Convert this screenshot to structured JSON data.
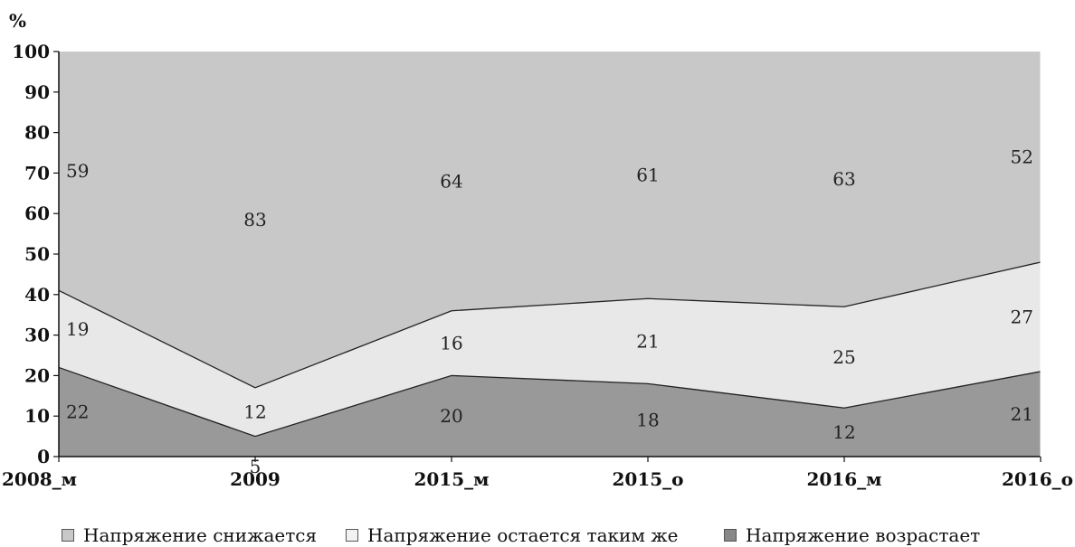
{
  "chart_data": {
    "type": "area",
    "stacked": true,
    "ylabel": "%",
    "ylim": [
      0,
      100
    ],
    "yticks": [
      0,
      10,
      20,
      30,
      40,
      50,
      60,
      70,
      80,
      90,
      100
    ],
    "categories": [
      "2008_м",
      "2009",
      "2015_м",
      "2015_о",
      "2016_м",
      "2016_о"
    ],
    "series": [
      {
        "name": "Напряжение возрастает",
        "values": [
          22,
          5,
          20,
          18,
          12,
          21
        ],
        "color": "#999999"
      },
      {
        "name": "Напряжение остается таким же",
        "values": [
          19,
          12,
          16,
          21,
          25,
          27
        ],
        "color": "#e8e8e8"
      },
      {
        "name": "Напряжение снижается",
        "values": [
          59,
          83,
          64,
          61,
          63,
          52
        ],
        "color": "#c8c8c8"
      }
    ],
    "legend_order": [
      2,
      1,
      0
    ],
    "legend_position": "bottom",
    "grid": false
  }
}
